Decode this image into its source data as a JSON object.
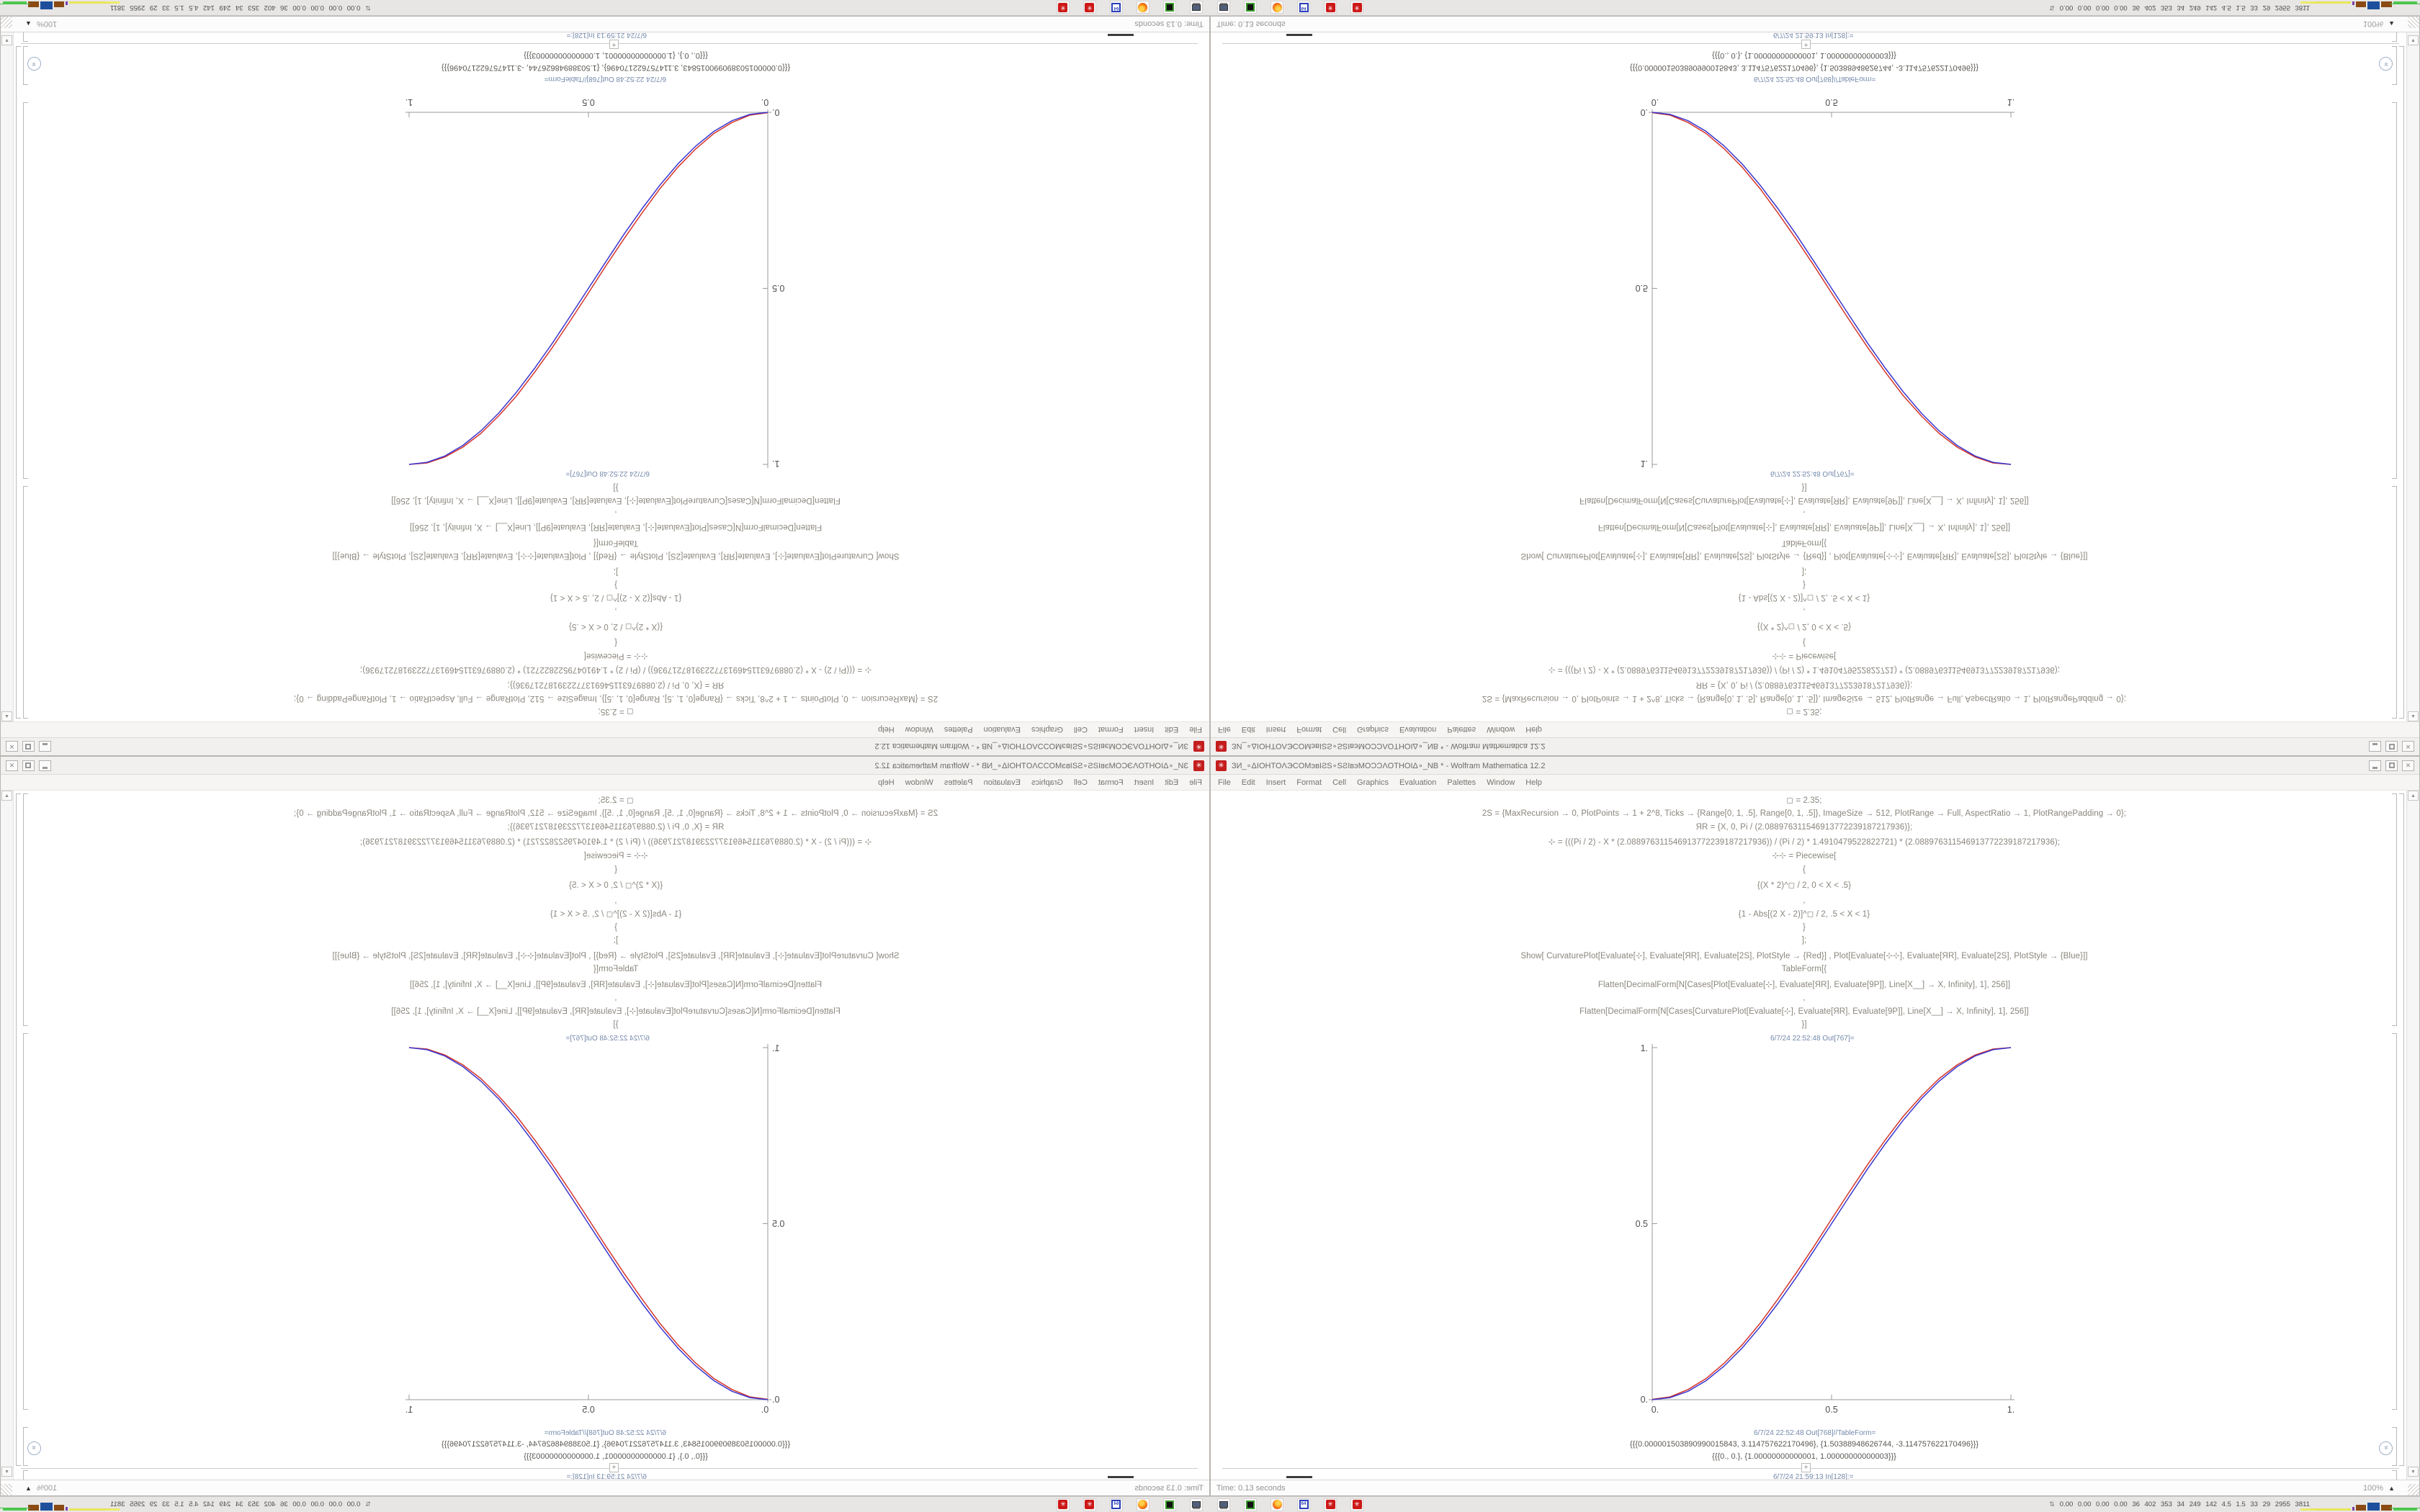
{
  "window": {
    "icon_glyph": "✳",
    "title": "ЗИ_∘ΔIOHTOΛЭCOMэвIƧS∘SƧIвэMOƆƆΛOTHOIΔ∘_NB * - Wolfram Mathematica 12.2",
    "menu": [
      "File",
      "Edit",
      "Insert",
      "Format",
      "Cell",
      "Graphics",
      "Evaluation",
      "Palettes",
      "Window",
      "Help"
    ],
    "controls": {
      "close_glyph": "✕"
    }
  },
  "notebook": {
    "input_lines": [
      "◻ = 2.35;",
      "2S = {MaxRecursion → 0, PlotPoints → 1 + 2^8, Ticks → {Range[0, 1, .5], Range[0, 1, .5]}, ImageSize → 512, PlotRange → Full, AspectRatio → 1, PlotRangePadding → 0};",
      "ЯR = {X, 0, Pi / (2.088976311546913772239187217936)};",
      "⊹ = (((Pi / 2) - X * (2.088976311546913772239187217936)) / (Pi / 2) * 1.4910479522822721) * (2.088976311546913772239187217936);",
      "⊹⊹ = Piecewise[",
      "{",
      "{(X * 2)^◻ / 2, 0 < X < .5}",
      ",",
      "{1 - Abs[(2 X - 2)]^◻ / 2, .5 < X < 1}",
      "}",
      "];",
      "Show[ CurvaturePlot[Evaluate[⊹], Evaluate[ЯR], Evaluate[2S], PlotStyle → {Red}] , Plot[Evaluate[⊹⊹], Evaluate[ЯR], Evaluate[2S], PlotStyle → {Blue}]]",
      "TableForm[{",
      "Flatten[DecimalForm[N[Cases[Plot[Evaluate[⊹], Evaluate[ЯR], Evaluate[9P]], Line[X__] → X, Infinity], 1], 256]]",
      ",",
      "Flatten[DecimalForm[N[Cases[CurvaturePlot[Evaluate[⊹], Evaluate[ЯR], Evaluate[9P]], Line[X__] → X, Infinity], 1], 256]]",
      "}]"
    ],
    "out1_label": "6/7/24 22:52:48 Out[767]=",
    "out2_label": "6/7/24 22:52:48 Out[768]//TableForm=",
    "table_lines": [
      "{{{0.000001503890990015843, 3.114757622170496}, {1.50388948626744, -3.114757622170496}}}",
      "{{{0., 0.}, {1.00000000000001, 1.00000000000003}}}"
    ],
    "next_cell_label": "6/7/24 21:59:13 In[128]:=",
    "insert_plus": "+"
  },
  "status_bar": {
    "time": "Time: 0.13 seconds",
    "zoom": "100%"
  },
  "taskbar": {
    "floppy_label": "64",
    "monitor_icon": "⇅",
    "monitor_text": "0.00 0.00 0.00 0.00 36 402 353 34 249 142 4.5 1.5 33 29 2955 3811"
  },
  "chart_data": {
    "type": "line",
    "title": "",
    "xlabel": "",
    "ylabel": "",
    "xlim": [
      0,
      1
    ],
    "ylim": [
      0,
      1
    ],
    "grid": false,
    "legend": false,
    "axes": "left-bottom",
    "xtick_labels": [
      "0.",
      "0.5",
      "1."
    ],
    "ytick_labels": [
      "0.",
      "0.5",
      "1."
    ],
    "x": [
      0,
      0.05,
      0.1,
      0.15,
      0.2,
      0.25,
      0.3,
      0.35,
      0.4,
      0.45,
      0.5,
      0.55,
      0.6,
      0.65,
      0.7,
      0.75,
      0.8,
      0.85,
      0.9,
      0.95,
      1
    ],
    "series": [
      {
        "name": "CurvaturePlot (Red)",
        "color": "#d5352b",
        "values": [
          0.001,
          0.008,
          0.029,
          0.06,
          0.103,
          0.155,
          0.216,
          0.285,
          0.358,
          0.434,
          0.513,
          0.591,
          0.667,
          0.738,
          0.805,
          0.862,
          0.912,
          0.951,
          0.979,
          0.996,
          1.0
        ]
      },
      {
        "name": "Piecewise Plot (Blue)",
        "color": "#3a35cf",
        "values": [
          0.0,
          0.006,
          0.024,
          0.054,
          0.095,
          0.146,
          0.206,
          0.273,
          0.345,
          0.422,
          0.5,
          0.578,
          0.655,
          0.727,
          0.794,
          0.854,
          0.905,
          0.946,
          0.976,
          0.994,
          1.0
        ]
      }
    ]
  }
}
